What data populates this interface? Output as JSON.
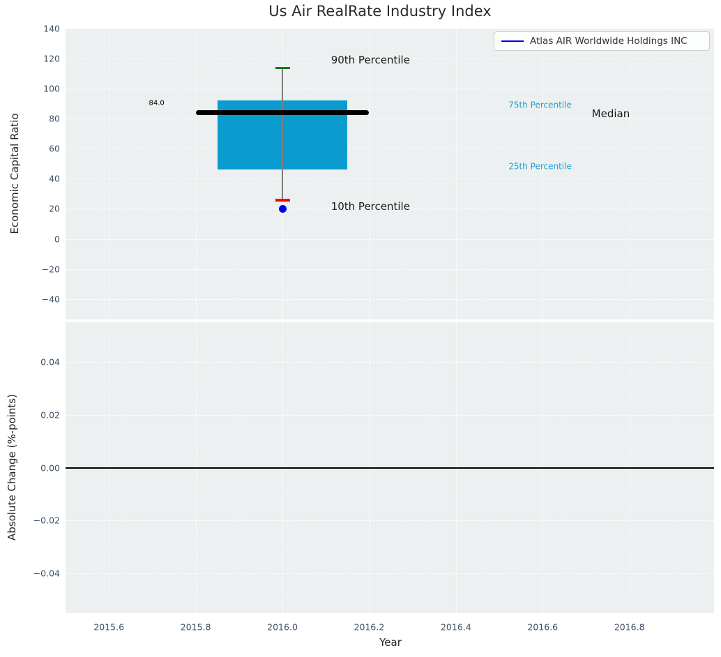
{
  "figure": {
    "background": "#ffffff",
    "plot_background": "#ecf0f1"
  },
  "legend": {
    "label": "Atlas AIR Worldwide Holdings INC",
    "line_color": "#0000ee"
  },
  "chart_data": [
    {
      "type": "box",
      "title": "Us Air RealRate Industry Index",
      "ylabel": "Economic Capital Ratio",
      "xlim": [
        2015.5,
        2016.995
      ],
      "ylim": [
        -53.6,
        140
      ],
      "xticks": [
        2015.6,
        2015.8,
        2016.0,
        2016.2,
        2016.4,
        2016.6,
        2016.8
      ],
      "yticks": [
        140,
        120,
        100,
        80,
        60,
        40,
        20,
        0,
        -20,
        -40
      ],
      "ytick_labels": [
        "140",
        "120",
        "100",
        "80",
        "60",
        "40",
        "20",
        "0",
        "−20",
        "−40"
      ],
      "grid": true,
      "legend_position": "upper right",
      "box": {
        "x0": 2015.85,
        "x1": 2016.15,
        "p25": 46,
        "p75": 92,
        "color": "#0a9bcf"
      },
      "median": {
        "value": 84,
        "x0": 2015.8,
        "x1": 2016.2,
        "label": "84.0",
        "color": "#000000"
      },
      "whisker": {
        "x": 2016.0,
        "p10": 26,
        "p90": 114,
        "line_color": "#7f7f7f",
        "p90_cap_color": "#008000",
        "p10_cap_color": "#ff0000"
      },
      "company_point": {
        "name": "Atlas AIR Worldwide Holdings INC",
        "x": 2016.0,
        "y": 20,
        "color": "#0000ee"
      },
      "annotations": [
        {
          "text": "90th Percentile",
          "x": 2016.203,
          "y": 119.2,
          "size": 15,
          "color": "#1a1a1a"
        },
        {
          "text": "10th Percentile",
          "x": 2016.203,
          "y": 21.5,
          "size": 15,
          "color": "#1a1a1a"
        },
        {
          "text": "75th Percentile",
          "x": 2016.594,
          "y": 88.8,
          "size": 12,
          "color": "#1b9fd4"
        },
        {
          "text": "25th Percentile",
          "x": 2016.594,
          "y": 48.0,
          "size": 12,
          "color": "#1b9fd4"
        },
        {
          "text": "Median",
          "x": 2016.757,
          "y": 83.2,
          "size": 15,
          "color": "#1a1a1a"
        },
        {
          "text": "84.0",
          "x": 2015.71,
          "y": 90.5,
          "size": 10,
          "color": "#000000"
        }
      ]
    },
    {
      "type": "line",
      "ylabel": "Absolute Change (%-points)",
      "xlabel": "Year",
      "xlim": [
        2015.5,
        2016.995
      ],
      "ylim": [
        -0.0552,
        0.0552
      ],
      "xticks": [
        2015.6,
        2015.8,
        2016.0,
        2016.2,
        2016.4,
        2016.6,
        2016.8
      ],
      "xtick_labels": [
        "2015.6",
        "2015.8",
        "2016.0",
        "2016.2",
        "2016.4",
        "2016.6",
        "2016.8"
      ],
      "yticks": [
        0.04,
        0.02,
        0,
        -0.02,
        -0.04
      ],
      "ytick_labels": [
        "0.04",
        "0.02",
        "0.00",
        "−0.02",
        "−0.04"
      ],
      "grid": true,
      "zero_line": {
        "y": 0,
        "color": "#000000"
      }
    }
  ]
}
